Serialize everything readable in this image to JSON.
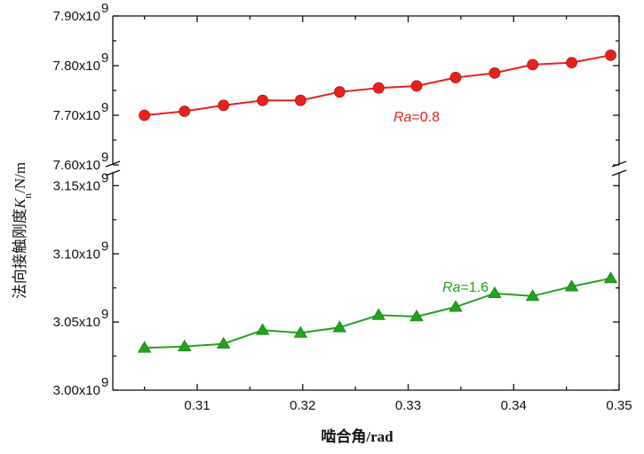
{
  "chart_data": {
    "type": "line",
    "xlabel": "啮合角/rad",
    "ylabel": "法向接触刚度K_n/N/m",
    "ylabel_main": "法向接触刚度",
    "ylabel_symbol": "K",
    "ylabel_sub": "n",
    "ylabel_unit": "/N/m",
    "xlim": [
      0.302,
      0.35
    ],
    "x_ticks": [
      "0.31",
      "0.32",
      "0.33",
      "0.34",
      "0.35"
    ],
    "x": [
      0.305,
      0.3088,
      0.3125,
      0.3162,
      0.3198,
      0.3235,
      0.3272,
      0.3308,
      0.3345,
      0.3382,
      0.3418,
      0.3455,
      0.3492
    ],
    "y_axis_break": true,
    "y_upper": {
      "ylim": [
        7600000000.0,
        7900000000.0
      ],
      "ticks": [
        7600000000.0,
        7700000000.0,
        7800000000.0,
        7900000000.0
      ],
      "tick_labels": [
        "7.60x10",
        "7.70x10",
        "7.80x10",
        "7.90x10"
      ],
      "tick_exp": "9"
    },
    "y_lower": {
      "ylim": [
        3000000000.0,
        3160000000.0
      ],
      "ticks": [
        3000000000.0,
        3050000000.0,
        3100000000.0,
        3150000000.0
      ],
      "tick_labels": [
        "3.00x10",
        "3.05x10",
        "3.10x10",
        "3.15x10"
      ],
      "tick_exp": "9"
    },
    "series": [
      {
        "name": "Ra=0.8",
        "label_italic": "Ra",
        "label_rest": "=0.8",
        "color": "#e8211d",
        "marker": "circle",
        "panel": "upper",
        "values": [
          7700000000.0,
          7708000000.0,
          7720000000.0,
          7730000000.0,
          7730000000.0,
          7747000000.0,
          7755000000.0,
          7759000000.0,
          7776000000.0,
          7785000000.0,
          7802000000.0,
          7806000000.0,
          7821000000.0
        ]
      },
      {
        "name": "Ra=1.6",
        "label_italic": "Ra",
        "label_rest": "=1.6",
        "color": "#21a31d",
        "marker": "triangle",
        "panel": "lower",
        "values": [
          3031000000.0,
          3032000000.0,
          3034000000.0,
          3044000000.0,
          3042000000.0,
          3046000000.0,
          3055000000.0,
          3054000000.0,
          3061000000.0,
          3071000000.0,
          3069000000.0,
          3076000000.0,
          3082000000.0
        ]
      }
    ]
  }
}
